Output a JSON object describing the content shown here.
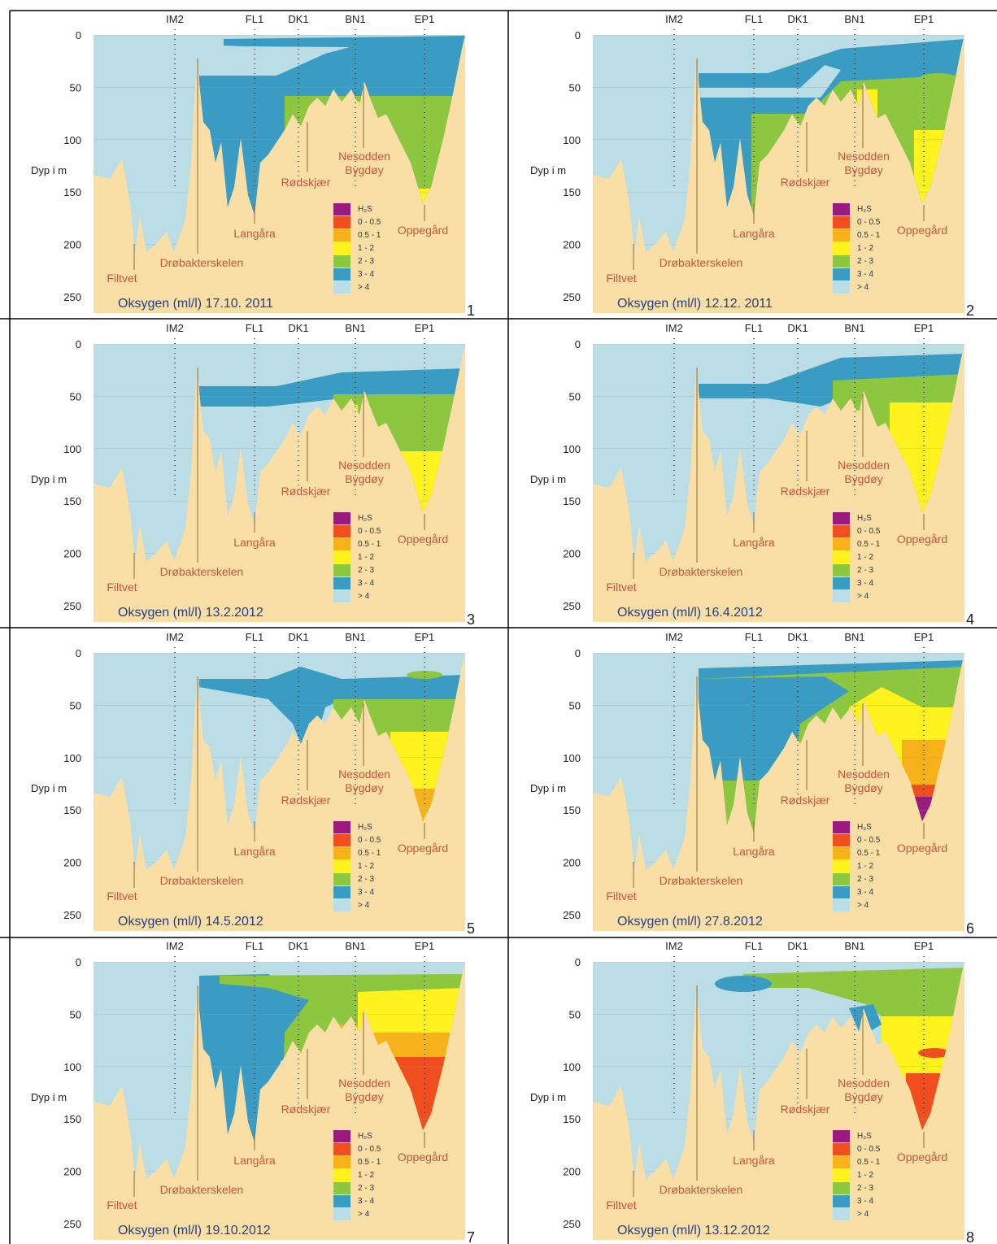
{
  "stations": [
    "IM2",
    "FL1",
    "DK1",
    "BN1",
    "EP1"
  ],
  "depth_axis": {
    "label": "Dyp i m",
    "ticks": [
      "0",
      "50",
      "100",
      "150",
      "200",
      "250"
    ]
  },
  "places": {
    "filtvet": "Filtvet",
    "drobak": "Drøbakterskelen",
    "langara": "Langåra",
    "rodskjaer": "Rødskjær",
    "nesodden": "Nesodden",
    "bygdoy": "Bygdøy",
    "oppegard": "Oppegård"
  },
  "legend": [
    {
      "label": "H₂S",
      "color": "#9b1a7e"
    },
    {
      "label": "0 - 0.5",
      "color": "#f04e1e"
    },
    {
      "label": "0.5 - 1",
      "color": "#f7b21a"
    },
    {
      "label": "1 - 2",
      "color": "#fff21d"
    },
    {
      "label": "2 - 3",
      "color": "#8dc63f"
    },
    {
      "label": "3 - 4",
      "color": "#3a9cc2"
    },
    {
      "label": "> 4",
      "color": "#badde6"
    }
  ],
  "panels": [
    {
      "title": "Oksygen (ml/l) 17.10. 2011",
      "number": "1"
    },
    {
      "title": "Oksygen (ml/l) 12.12. 2011",
      "number": "2"
    },
    {
      "title": "Oksygen (ml/l) 13.2.2012",
      "number": "3"
    },
    {
      "title": "Oksygen (ml/l) 16.4.2012",
      "number": "4"
    },
    {
      "title": "Oksygen (ml/l) 14.5.2012",
      "number": "5"
    },
    {
      "title": "Oksygen (ml/l) 27.8.2012",
      "number": "6"
    },
    {
      "title": "Oksygen (ml/l) 19.10.2012",
      "number": "7"
    },
    {
      "title": "Oksygen (ml/l) 13.12.2012",
      "number": "8"
    }
  ]
}
